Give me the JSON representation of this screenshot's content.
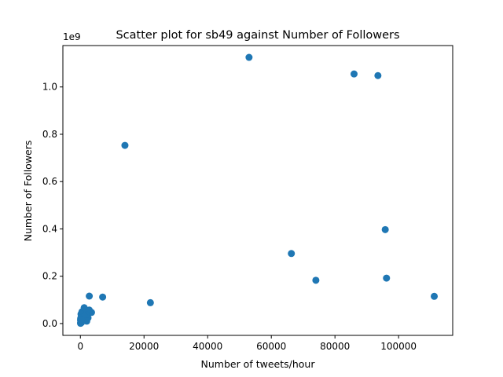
{
  "chart_data": {
    "type": "scatter",
    "title": "Scatter plot for sb49 against Number of Followers",
    "xlabel": "Number of tweets/hour",
    "ylabel": "Number of Followers",
    "y_offset_label": "1e9",
    "xlim": [
      -5500,
      117000
    ],
    "ylim": [
      -0.05,
      1.175
    ],
    "x_ticks": [
      0,
      20000,
      40000,
      60000,
      80000,
      100000
    ],
    "x_tick_labels": [
      "0",
      "20000",
      "40000",
      "60000",
      "80000",
      "100000"
    ],
    "y_ticks": [
      0.0,
      0.2,
      0.4,
      0.6,
      0.8,
      1.0
    ],
    "y_tick_labels": [
      "0.0",
      "0.2",
      "0.4",
      "0.6",
      "0.8",
      "1.0"
    ],
    "grid": false,
    "point_color": "#1f77b4",
    "points": [
      {
        "x": 53000,
        "y": 1.125
      },
      {
        "x": 86000,
        "y": 1.055
      },
      {
        "x": 93500,
        "y": 1.048
      },
      {
        "x": 14000,
        "y": 0.753
      },
      {
        "x": 95800,
        "y": 0.397
      },
      {
        "x": 66300,
        "y": 0.296
      },
      {
        "x": 74000,
        "y": 0.183
      },
      {
        "x": 96200,
        "y": 0.192
      },
      {
        "x": 111200,
        "y": 0.115
      },
      {
        "x": 22000,
        "y": 0.088
      },
      {
        "x": 7000,
        "y": 0.112
      },
      {
        "x": 2800,
        "y": 0.116
      },
      {
        "x": 3500,
        "y": 0.047
      },
      {
        "x": 2800,
        "y": 0.057
      },
      {
        "x": 1200,
        "y": 0.067
      },
      {
        "x": 2400,
        "y": 0.024
      },
      {
        "x": 1800,
        "y": 0.038
      },
      {
        "x": 1000,
        "y": 0.045
      },
      {
        "x": 500,
        "y": 0.05
      },
      {
        "x": 300,
        "y": 0.03
      },
      {
        "x": 600,
        "y": 0.02
      },
      {
        "x": 900,
        "y": 0.012
      },
      {
        "x": 200,
        "y": 0.04
      },
      {
        "x": 150,
        "y": 0.008
      },
      {
        "x": 80,
        "y": 0.003
      },
      {
        "x": 400,
        "y": 0.005
      },
      {
        "x": 700,
        "y": 0.028
      },
      {
        "x": 1500,
        "y": 0.018
      },
      {
        "x": 50,
        "y": 0.015
      },
      {
        "x": 100,
        "y": 0.022
      },
      {
        "x": 250,
        "y": 0.012
      },
      {
        "x": 1300,
        "y": 0.03
      },
      {
        "x": 2000,
        "y": 0.01
      },
      {
        "x": 60,
        "y": 0.001
      },
      {
        "x": 350,
        "y": 0.017
      }
    ]
  }
}
